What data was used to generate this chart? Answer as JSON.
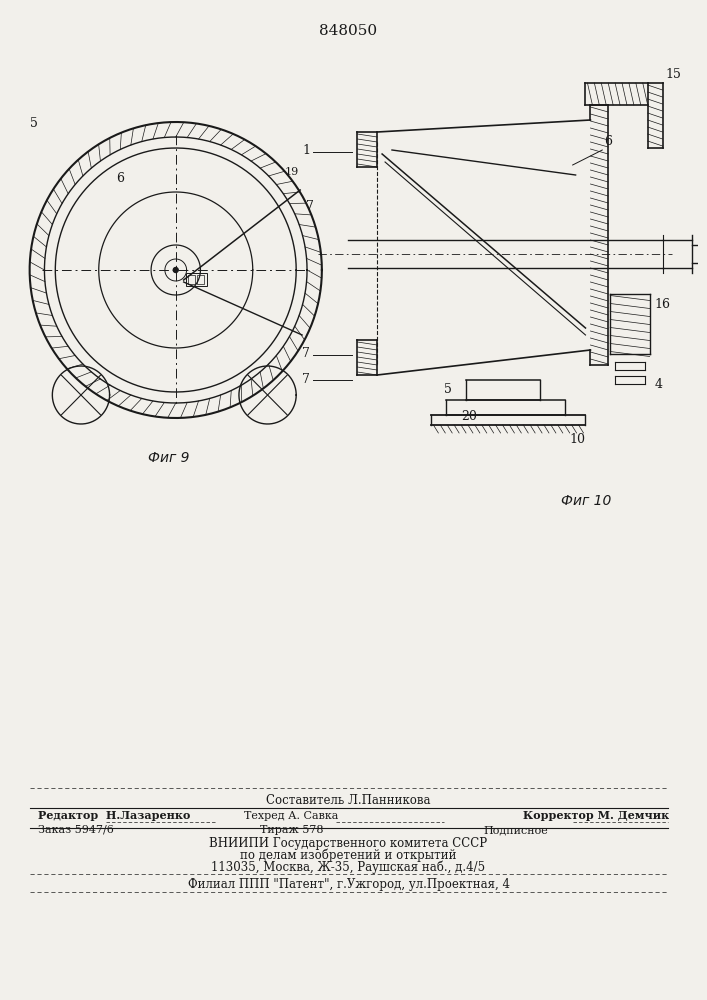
{
  "patent_number": "848050",
  "fig9_label": "Фиг 9",
  "fig10_label": "Фиг 10",
  "bg_color": "#f2f0eb",
  "line_color": "#1a1a1a",
  "footer_line0": "Составитель Л.Панникова",
  "footer_line1a": "Редактор  Н.Лазаренко",
  "footer_line1b": "Техред А. Савка",
  "footer_line1c": "Корректор М. Демчик",
  "footer_line2a": "Заказ 5947/6",
  "footer_line2b": "Тираж 578",
  "footer_line2c": "Подписное",
  "footer_line3": "ВНИИПИ Государственного комитета СССР",
  "footer_line4": "по делам изобретений и открытий",
  "footer_line5": "113035, Москва, Ж-35, Раушская наб., д.4/5",
  "footer_line6": "Филиал ППП \"Патент\", г.Ужгород, ул.Проектная, 4"
}
